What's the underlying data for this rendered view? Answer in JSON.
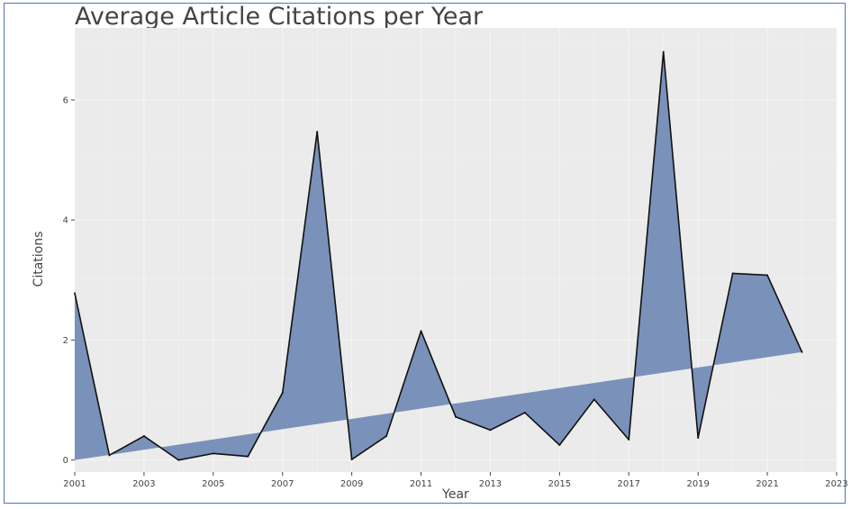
{
  "chart_data": {
    "type": "area",
    "title": "Average Article Citations per Year",
    "xlabel": "Year",
    "ylabel": "Citations",
    "xlim": [
      2001,
      2023
    ],
    "ylim": [
      -0.2,
      7.2
    ],
    "x_ticks": [
      2001,
      2003,
      2005,
      2007,
      2009,
      2011,
      2013,
      2015,
      2017,
      2019,
      2021,
      2023
    ],
    "y_ticks": [
      0,
      2,
      4,
      6
    ],
    "grid": true,
    "background": "#ebebeb",
    "fill_color": "#7a91b9",
    "line_color": "#111111",
    "series": [
      {
        "x": [
          2001,
          2002,
          2003,
          2004,
          2005,
          2006,
          2007,
          2008,
          2009,
          2010,
          2011,
          2012,
          2013,
          2014,
          2015,
          2016,
          2017,
          2018,
          2019,
          2020,
          2021,
          2022
        ],
        "values": [
          2.78,
          0.08,
          0.4,
          0.0,
          0.11,
          0.06,
          1.12,
          5.47,
          0.01,
          0.4,
          2.15,
          0.72,
          0.5,
          0.79,
          0.25,
          1.01,
          0.34,
          6.8,
          0.37,
          3.11,
          3.08,
          1.8
        ]
      }
    ],
    "trend": {
      "x": [
        2001,
        2022
      ],
      "values": [
        0.0,
        1.8
      ]
    }
  }
}
